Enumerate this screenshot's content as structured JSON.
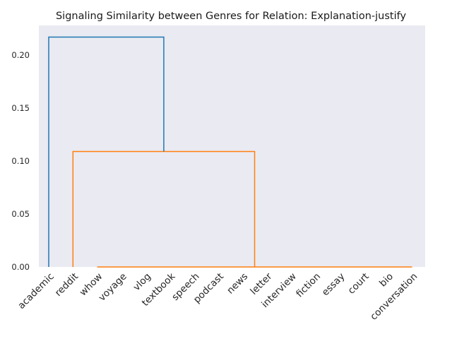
{
  "chart_data": {
    "type": "dendrogram",
    "title": "Signaling Similarity between Genres for Relation: Explanation-justify",
    "xlabel": "",
    "ylabel": "",
    "ylim": [
      0,
      0.228
    ],
    "yticks": [
      0.0,
      0.05,
      0.1,
      0.15,
      0.2
    ],
    "ytick_labels": [
      "0.00",
      "0.05",
      "0.10",
      "0.15",
      "0.20"
    ],
    "leaves": [
      "academic",
      "reddit",
      "whow",
      "voyage",
      "vlog",
      "textbook",
      "speech",
      "podcast",
      "news",
      "letter",
      "interview",
      "fiction",
      "essay",
      "court",
      "bio",
      "conversation"
    ],
    "links": [
      {
        "left": "reddit",
        "right": "whow..conversation (cluster of 14 leaves at height 0)",
        "height": 0.109,
        "color": "#ff7f0e"
      },
      {
        "left": "academic",
        "right": "reddit..conversation",
        "height": 0.217,
        "color": "#1f77b4"
      }
    ],
    "zero_height_cluster": [
      "whow",
      "voyage",
      "vlog",
      "textbook",
      "speech",
      "podcast",
      "news",
      "letter",
      "interview",
      "fiction",
      "essay",
      "court",
      "bio",
      "conversation"
    ],
    "colors": {
      "background": "#eaeaf2",
      "cluster_1": "#ff7f0e",
      "above_threshold": "#1f77b4"
    },
    "grid": false,
    "legend": "none"
  }
}
